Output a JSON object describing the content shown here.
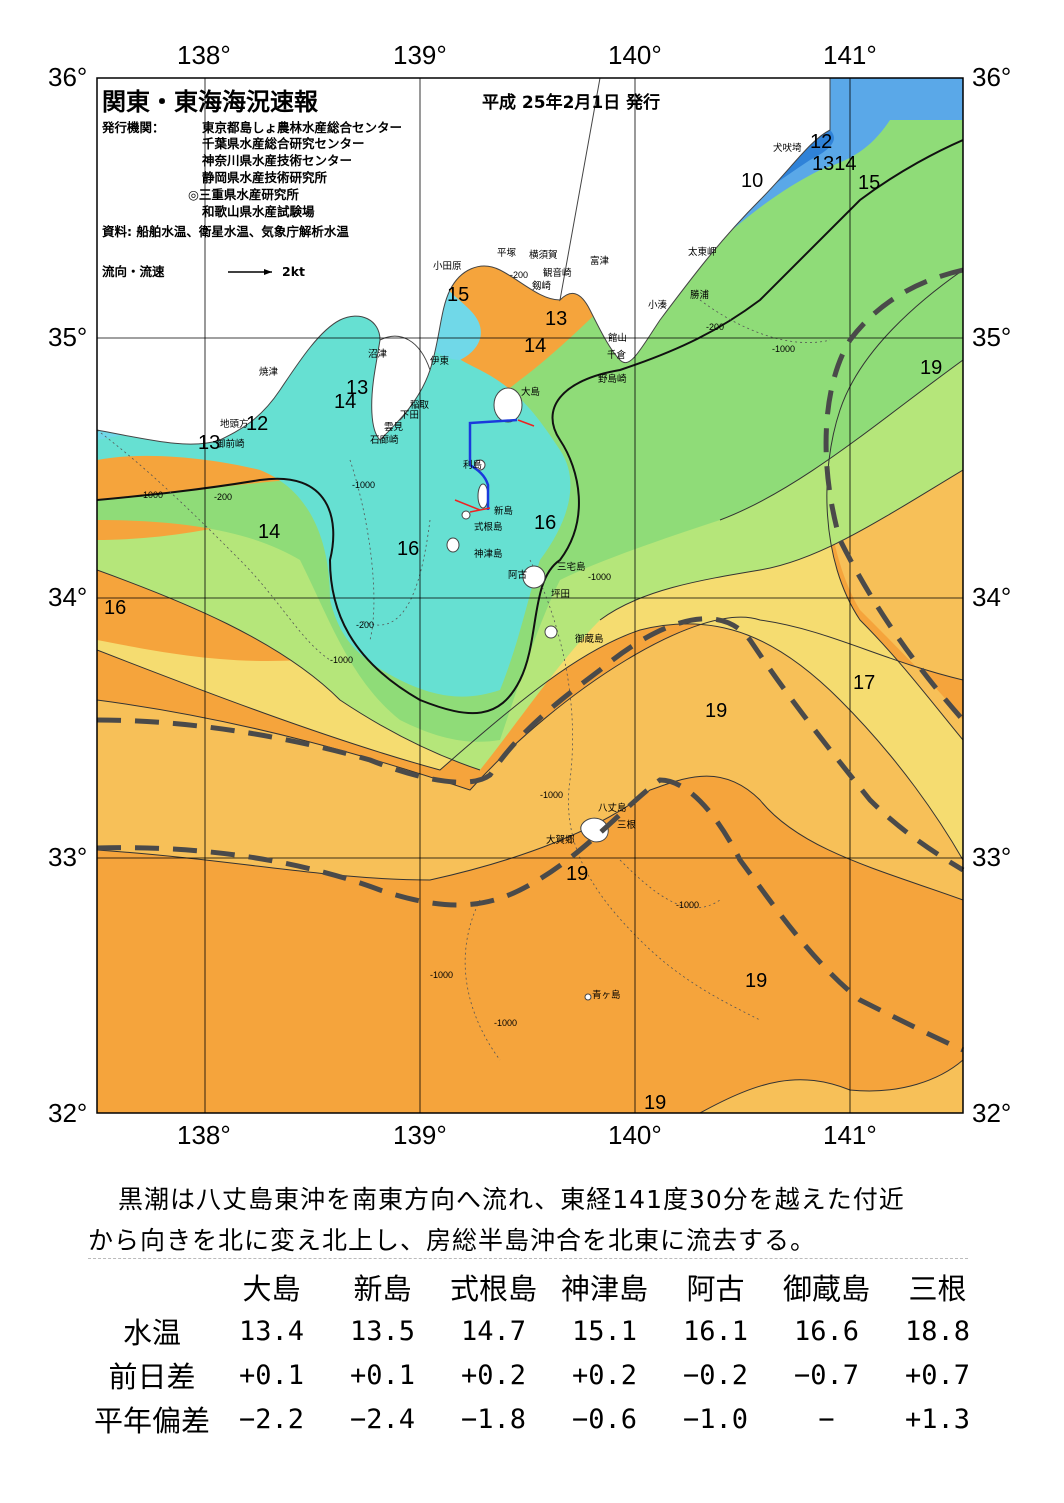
{
  "header": {
    "title": "関東・東海海況速報",
    "date": "平成 25年2月1日 発行",
    "publisher_label": "発行機関：",
    "publishers": [
      "東京都島しょ農林水産総合センター",
      "千葉県水産総合研究センター",
      "神奈川県水産技術センター",
      "静岡県水産技術研究所",
      "◎三重県水産研究所",
      "和歌山県水産試験場"
    ],
    "sources": "資料: 船舶水温、衛星水温、気象庁解析水温",
    "flow_legend_label": "流向・流速",
    "flow_legend_unit": "2kt"
  },
  "axes": {
    "lon_labels": [
      "138°",
      "139°",
      "140°",
      "141°"
    ],
    "lat_labels": [
      "36°",
      "35°",
      "34°",
      "33°",
      "32°"
    ]
  },
  "isotherm_labels": [
    {
      "text": "12",
      "pos": "犬吠埼 south"
    },
    {
      "text": "1314",
      "pos": "犬吠埼 south"
    },
    {
      "text": "15",
      "pos": "犬吠埼 offshore"
    },
    {
      "text": "10",
      "pos": "九十九里"
    },
    {
      "text": "15",
      "pos": "相模湾"
    },
    {
      "text": "13",
      "pos": "東京湾口"
    },
    {
      "text": "14",
      "pos": "相模湾南"
    },
    {
      "text": "19",
      "pos": "房総東方"
    },
    {
      "text": "13",
      "pos": "駿河湾"
    },
    {
      "text": "14",
      "pos": "駿河湾"
    },
    {
      "text": "12",
      "pos": "御前崎"
    },
    {
      "text": "13",
      "pos": "御前崎"
    },
    {
      "text": "14",
      "pos": "遠州灘"
    },
    {
      "text": "16",
      "pos": "石廊崎南"
    },
    {
      "text": "16",
      "pos": "式根島東"
    },
    {
      "text": "16",
      "pos": "西端"
    },
    {
      "text": "17",
      "pos": "東方"
    },
    {
      "text": "19",
      "pos": "御蔵島南"
    },
    {
      "text": "19",
      "pos": "八丈島"
    },
    {
      "text": "19",
      "pos": "八丈島南東"
    },
    {
      "text": "19",
      "pos": "南端"
    }
  ],
  "places": [
    "犬吠埼",
    "太東岬",
    "勝浦",
    "小湊",
    "富津",
    "観音崎",
    "横須賀",
    "剱崎",
    "平塚",
    "小田原",
    "館山",
    "千倉",
    "野島崎",
    "大島",
    "利島",
    "新島",
    "式根島",
    "神津島",
    "三宅島",
    "阿古",
    "坪田",
    "御蔵島",
    "八丈島",
    "三根",
    "大賀郷",
    "青ヶ島",
    "沼津",
    "伊東",
    "焼津",
    "稲取",
    "下田",
    "雲見",
    "石廊崎",
    "地頭方",
    "御前崎"
  ],
  "bathymetry_labels": [
    "-200",
    "-1000"
  ],
  "description": [
    "黒潮は八丈島東沖を南東方向へ流れ、東経141度30分を越えた付近",
    "から向きを北に変え北上し、房総半島沖合を北東に流去する。"
  ],
  "table": {
    "columns": [
      "大島",
      "新島",
      "式根島",
      "神津島",
      "阿古",
      "御蔵島",
      "三根"
    ],
    "rows": [
      {
        "label": "水温",
        "values": [
          "13.4",
          "13.5",
          "14.7",
          "15.1",
          "16.1",
          "16.6",
          "18.8"
        ]
      },
      {
        "label": "前日差",
        "values": [
          "+0.1",
          "+0.1",
          "+0.2",
          "+0.2",
          "−0.2",
          "−0.7",
          "+0.7"
        ]
      },
      {
        "label": "平年偏差",
        "values": [
          "−2.2",
          "−2.4",
          "−1.8",
          "−0.6",
          "−1.0",
          "−",
          "+1.3"
        ]
      }
    ]
  },
  "colors": {
    "orange": "#f5a43c",
    "light_orange": "#f7c058",
    "yellow": "#f5dc70",
    "light_green": "#b5e67a",
    "green": "#8fdc78",
    "aqua": "#66e0d2",
    "cyan": "#70d8e8",
    "blue": "#3390e0",
    "kuroshio_axis": "#4a4a4a",
    "survey_track": "#1a3adc"
  }
}
